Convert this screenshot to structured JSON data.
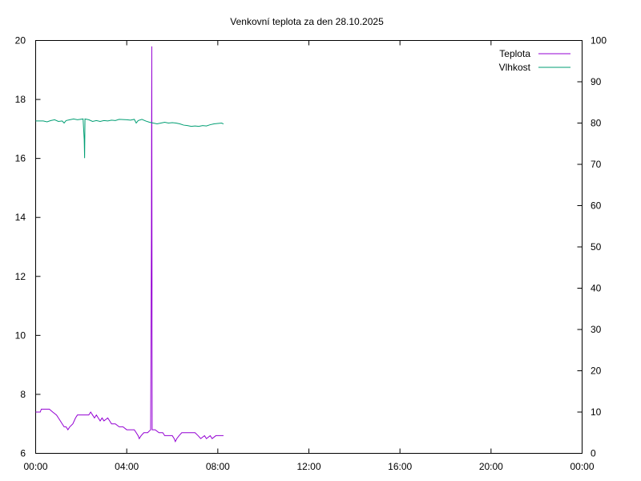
{
  "chart_data": {
    "type": "line",
    "title": "Venkovní teplota za den 28.10.2025",
    "x_axis": {
      "ticks": [
        "00:00",
        "04:00",
        "08:00",
        "12:00",
        "16:00",
        "20:00",
        "00:00"
      ],
      "range_hours": [
        0,
        24
      ]
    },
    "y_left": {
      "range": [
        6,
        20
      ],
      "ticks": [
        "6",
        "8",
        "10",
        "12",
        "14",
        "16",
        "18",
        "20"
      ]
    },
    "y_right": {
      "range": [
        0,
        100
      ],
      "ticks": [
        "0",
        "10",
        "20",
        "30",
        "40",
        "50",
        "60",
        "70",
        "80",
        "90",
        "100"
      ]
    },
    "legend_position": "top-right",
    "grid": false,
    "series": [
      {
        "name": "Teplota",
        "axis": "left",
        "color": "#9400d3",
        "points": [
          [
            "00:00",
            7.4
          ],
          [
            "00:12",
            7.4
          ],
          [
            "00:15",
            7.5
          ],
          [
            "00:36",
            7.5
          ],
          [
            "00:45",
            7.4
          ],
          [
            "00:55",
            7.3
          ],
          [
            "01:00",
            7.2
          ],
          [
            "01:05",
            7.1
          ],
          [
            "01:10",
            7.0
          ],
          [
            "01:15",
            6.9
          ],
          [
            "01:20",
            6.9
          ],
          [
            "01:25",
            6.8
          ],
          [
            "01:30",
            6.9
          ],
          [
            "01:38",
            7.0
          ],
          [
            "01:45",
            7.2
          ],
          [
            "01:50",
            7.3
          ],
          [
            "02:00",
            7.3
          ],
          [
            "02:10",
            7.3
          ],
          [
            "02:20",
            7.3
          ],
          [
            "02:25",
            7.4
          ],
          [
            "02:30",
            7.3
          ],
          [
            "02:35",
            7.2
          ],
          [
            "02:40",
            7.3
          ],
          [
            "02:45",
            7.2
          ],
          [
            "02:50",
            7.1
          ],
          [
            "02:55",
            7.2
          ],
          [
            "03:00",
            7.1
          ],
          [
            "03:10",
            7.2
          ],
          [
            "03:15",
            7.1
          ],
          [
            "03:20",
            7.0
          ],
          [
            "03:30",
            7.0
          ],
          [
            "03:40",
            6.9
          ],
          [
            "03:50",
            6.9
          ],
          [
            "04:00",
            6.8
          ],
          [
            "04:10",
            6.8
          ],
          [
            "04:20",
            6.8
          ],
          [
            "04:25",
            6.7
          ],
          [
            "04:30",
            6.6
          ],
          [
            "04:33",
            6.5
          ],
          [
            "04:38",
            6.6
          ],
          [
            "04:45",
            6.7
          ],
          [
            "04:55",
            6.7
          ],
          [
            "05:03",
            6.8
          ],
          [
            "05:05",
            13.3
          ],
          [
            "05:06",
            19.8
          ],
          [
            "05:07",
            6.8
          ],
          [
            "05:15",
            6.8
          ],
          [
            "05:25",
            6.7
          ],
          [
            "05:35",
            6.7
          ],
          [
            "05:40",
            6.6
          ],
          [
            "06:00",
            6.6
          ],
          [
            "06:05",
            6.5
          ],
          [
            "06:08",
            6.4
          ],
          [
            "06:12",
            6.5
          ],
          [
            "06:18",
            6.6
          ],
          [
            "06:25",
            6.7
          ],
          [
            "06:40",
            6.7
          ],
          [
            "07:00",
            6.7
          ],
          [
            "07:08",
            6.6
          ],
          [
            "07:15",
            6.5
          ],
          [
            "07:25",
            6.6
          ],
          [
            "07:30",
            6.5
          ],
          [
            "07:40",
            6.6
          ],
          [
            "07:45",
            6.5
          ],
          [
            "07:55",
            6.6
          ],
          [
            "08:15",
            6.6
          ]
        ]
      },
      {
        "name": "Vlhkost",
        "axis": "right",
        "color": "#009e73",
        "points": [
          [
            "00:00",
            80.5
          ],
          [
            "00:20",
            80.5
          ],
          [
            "00:30",
            80.3
          ],
          [
            "00:40",
            80.6
          ],
          [
            "00:50",
            80.8
          ],
          [
            "01:00",
            80.4
          ],
          [
            "01:10",
            80.5
          ],
          [
            "01:15",
            80.0
          ],
          [
            "01:20",
            80.6
          ],
          [
            "01:30",
            80.8
          ],
          [
            "01:40",
            81.0
          ],
          [
            "01:50",
            80.8
          ],
          [
            "02:05",
            81.0
          ],
          [
            "02:08",
            76.0
          ],
          [
            "02:09",
            71.5
          ],
          [
            "02:10",
            81.0
          ],
          [
            "02:20",
            80.8
          ],
          [
            "02:30",
            80.4
          ],
          [
            "02:40",
            80.6
          ],
          [
            "02:50",
            80.4
          ],
          [
            "03:00",
            80.6
          ],
          [
            "03:10",
            80.5
          ],
          [
            "03:20",
            80.7
          ],
          [
            "03:30",
            80.6
          ],
          [
            "03:40",
            80.9
          ],
          [
            "04:00",
            80.8
          ],
          [
            "04:10",
            80.7
          ],
          [
            "04:20",
            80.9
          ],
          [
            "04:25",
            80.0
          ],
          [
            "04:30",
            80.6
          ],
          [
            "04:40",
            80.9
          ],
          [
            "04:50",
            80.5
          ],
          [
            "05:00",
            80.2
          ],
          [
            "05:10",
            80.0
          ],
          [
            "05:20",
            79.8
          ],
          [
            "05:30",
            80.0
          ],
          [
            "05:40",
            80.2
          ],
          [
            "05:50",
            80.0
          ],
          [
            "06:00",
            80.1
          ],
          [
            "06:10",
            80.0
          ],
          [
            "06:20",
            79.8
          ],
          [
            "06:30",
            79.5
          ],
          [
            "06:40",
            79.4
          ],
          [
            "06:50",
            79.2
          ],
          [
            "07:00",
            79.3
          ],
          [
            "07:10",
            79.2
          ],
          [
            "07:20",
            79.4
          ],
          [
            "07:30",
            79.3
          ],
          [
            "07:40",
            79.6
          ],
          [
            "07:50",
            79.8
          ],
          [
            "08:00",
            79.9
          ],
          [
            "08:10",
            80.0
          ],
          [
            "08:15",
            79.8
          ]
        ]
      }
    ]
  }
}
